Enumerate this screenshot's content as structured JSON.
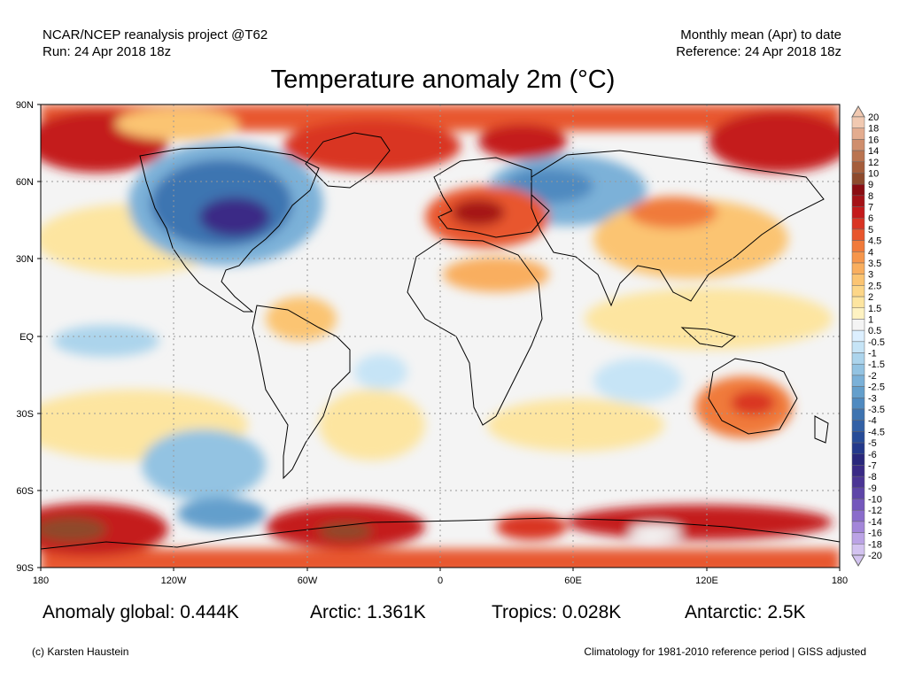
{
  "header": {
    "project": "NCAR/NCEP reanalysis project @T62",
    "run": "Run: 24 Apr 2018 18z",
    "period": "Monthly mean (Apr) to date",
    "reference": "Reference: 24 Apr 2018 18z"
  },
  "title": "Temperature anomaly 2m (°C)",
  "axes": {
    "lat_ticks": [
      "90N",
      "60N",
      "30N",
      "EQ",
      "30S",
      "60S",
      "90S"
    ],
    "lon_ticks": [
      "180",
      "120W",
      "60W",
      "0",
      "60E",
      "120E",
      "180"
    ]
  },
  "colorbar": {
    "labels": [
      "20",
      "18",
      "16",
      "14",
      "12",
      "10",
      "9",
      "8",
      "7",
      "6",
      "5",
      "4.5",
      "4",
      "3.5",
      "3",
      "2.5",
      "2",
      "1.5",
      "1",
      "0.5",
      "-0.5",
      "-1",
      "-1.5",
      "-2",
      "-2.5",
      "-3",
      "-3.5",
      "-4",
      "-4.5",
      "-5",
      "-6",
      "-7",
      "-8",
      "-9",
      "-10",
      "-12",
      "-14",
      "-16",
      "-18",
      "-20"
    ],
    "colors": [
      "#f1c9b1",
      "#e3ac8f",
      "#cf8e6d",
      "#ba7450",
      "#a55d3b",
      "#8e4a2c",
      "#8b0d12",
      "#a51217",
      "#c41a1b",
      "#d93423",
      "#e8562d",
      "#f07a3b",
      "#f6964b",
      "#f9ae5e",
      "#fbc472",
      "#fcd688",
      "#fde5a0",
      "#fef2c2",
      "#f4f4f4",
      "#dcefff",
      "#c6e4f6",
      "#acd4ec",
      "#93c3e2",
      "#7bb1d8",
      "#649fcc",
      "#4f8ac0",
      "#3e74b1",
      "#3260a5",
      "#274c98",
      "#24398b",
      "#2a287c",
      "#3a2a86",
      "#4b3595",
      "#5e45a8",
      "#7457bc",
      "#8a6ccb",
      "#a386d9",
      "#bba3e5",
      "#d3c3f0"
    ]
  },
  "stats": {
    "global": "Anomaly global: 0.444K",
    "arctic": "Arctic: 1.361K",
    "tropics": "Tropics: 0.028K",
    "antarctic": "Antarctic: 2.5K"
  },
  "footer": {
    "copyright": "(c) Karsten Haustein",
    "climatology": "Climatology for 1981-2010 reference period | GISS adjusted"
  }
}
